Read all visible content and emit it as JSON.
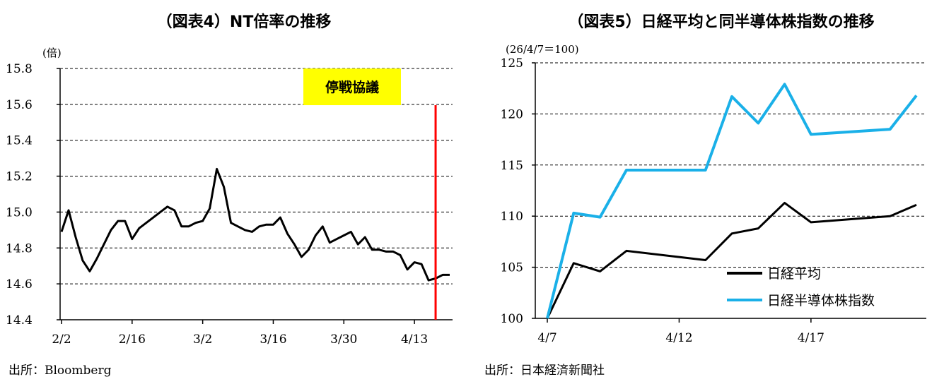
{
  "chart_data": [
    {
      "type": "line",
      "title": "（図表4）NT倍率の推移",
      "unit_label": "(倍)",
      "ylim": [
        14.4,
        15.8
      ],
      "y_ticks": [
        "15.8",
        "15.6",
        "15.4",
        "15.2",
        "15.0",
        "14.8",
        "14.6",
        "14.4"
      ],
      "y_tick_values": [
        15.8,
        15.6,
        15.4,
        15.2,
        15.0,
        14.8,
        14.6,
        14.4
      ],
      "x_tick_labels": [
        "2/2",
        "2/16",
        "3/2",
        "3/16",
        "3/30",
        "4/13"
      ],
      "x_tick_index": [
        0,
        10,
        20,
        30,
        40,
        50
      ],
      "x_count": 56,
      "grid": true,
      "series": [
        {
          "color": "#000000",
          "values": [
            14.89,
            15.01,
            14.86,
            14.73,
            14.67,
            14.74,
            14.82,
            14.9,
            14.95,
            14.95,
            14.85,
            14.91,
            14.94,
            14.97,
            15.0,
            15.03,
            15.01,
            14.92,
            14.92,
            14.94,
            14.95,
            15.02,
            15.24,
            15.14,
            14.94,
            14.92,
            14.9,
            14.89,
            14.92,
            14.93,
            14.93,
            14.97,
            14.88,
            14.82,
            14.75,
            14.79,
            14.87,
            14.92,
            14.83,
            14.85,
            14.87,
            14.89,
            14.82,
            14.86,
            14.79,
            14.79,
            14.78,
            14.78,
            14.76,
            14.68,
            14.72,
            14.71,
            14.62,
            14.63,
            14.65,
            14.65
          ]
        }
      ],
      "annotation": {
        "label": "停戦協議",
        "x_index": 53,
        "line_color": "#ff0000",
        "box_color": "#ffff00"
      }
    },
    {
      "type": "line",
      "title": "（図表5）日経平均と同半導体株指数の推移",
      "unit_label": "(26/4/7＝100)",
      "ylim": [
        100,
        125
      ],
      "y_ticks": [
        "125",
        "120",
        "115",
        "110",
        "105",
        "100"
      ],
      "y_tick_values": [
        125,
        120,
        115,
        110,
        105,
        100
      ],
      "x_tick_labels": [
        "4/7",
        "4/12",
        "4/17"
      ],
      "x_tick_day": [
        7,
        12,
        17
      ],
      "x_days": [
        7,
        8,
        9,
        10,
        13,
        14,
        15,
        16,
        17,
        20,
        21
      ],
      "grid": true,
      "legend": "bottom-right",
      "series": [
        {
          "name": "日経平均",
          "color": "#000000",
          "values": [
            100.0,
            105.4,
            104.6,
            106.6,
            105.7,
            108.3,
            108.8,
            111.3,
            109.4,
            110.0,
            111.1
          ]
        },
        {
          "name": "日経半導体株指数",
          "color": "#1ab0e8",
          "values": [
            100.0,
            110.3,
            109.9,
            114.5,
            114.5,
            121.7,
            119.1,
            122.9,
            118.0,
            118.5,
            121.8
          ]
        }
      ]
    }
  ],
  "sources": {
    "left": "出所：Bloomberg",
    "right": "出所：日本経済新聞社"
  }
}
